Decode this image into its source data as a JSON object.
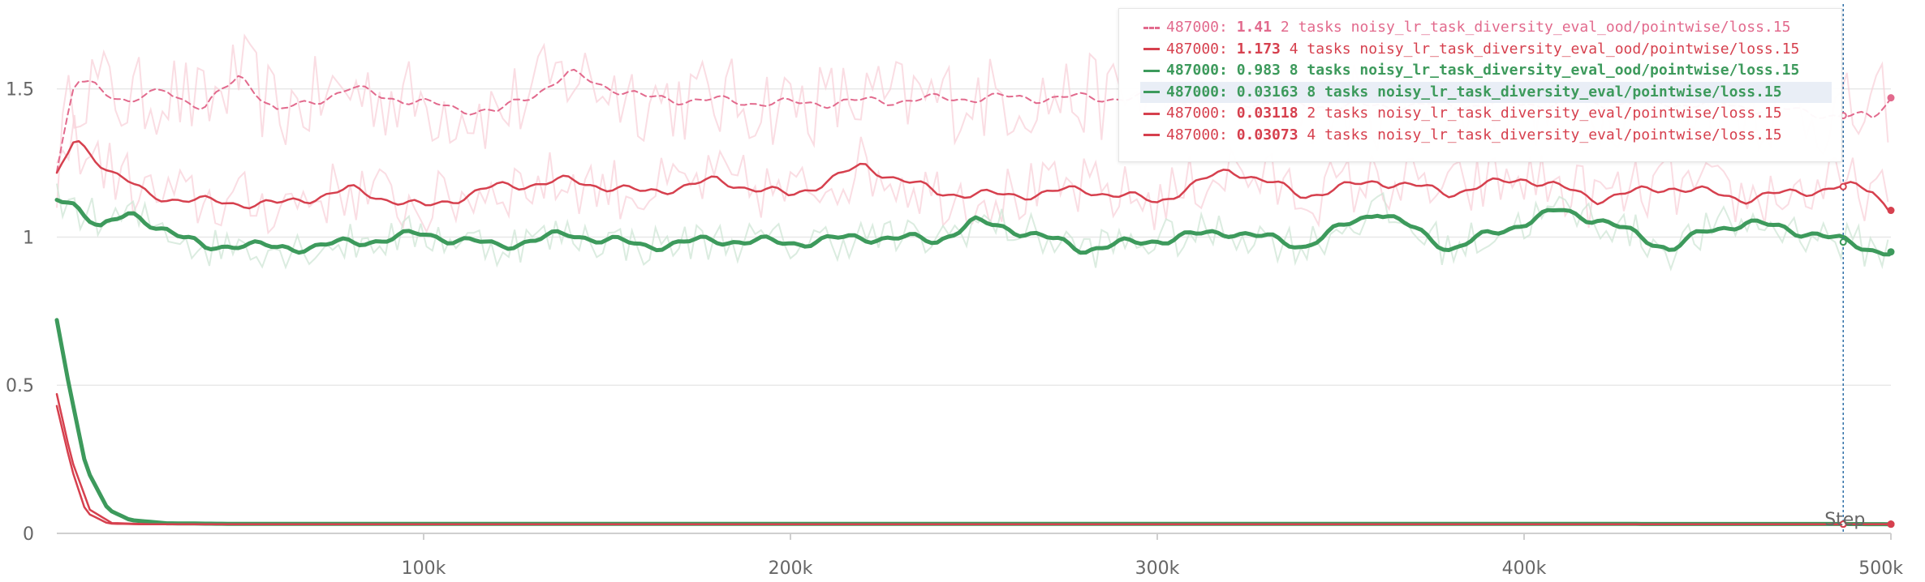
{
  "colors": {
    "pink": "#e26a8d",
    "red": "#d6404e",
    "green": "#3d9a5c",
    "green_faint": "#cfe6d5",
    "pink_faint": "#f8d2da",
    "grid": "#e8e8e8",
    "cursor": "#2f6fa8"
  },
  "chart_data": {
    "type": "line",
    "xlabel": "Step",
    "ylabel": "",
    "xlim": [
      0,
      500000
    ],
    "ylim": [
      0,
      1.8
    ],
    "x_ticks": [
      100000,
      200000,
      300000,
      400000,
      500000
    ],
    "x_tick_labels": [
      "100k",
      "200k",
      "300k",
      "400k",
      "500k"
    ],
    "y_ticks": [
      0,
      0.5,
      1,
      1.5
    ],
    "y_tick_labels": [
      "0",
      "0.5",
      "1",
      "1.5"
    ],
    "grid": true,
    "legend_position": "top-right",
    "cursor_step": 487000,
    "series": [
      {
        "name": "2 tasks noisy_lr_task_diversity_eval_ood/pointwise/loss.15",
        "color": "#e26a8d",
        "dashed": true,
        "width": 2,
        "x": [
          0,
          5000,
          10000,
          20000,
          30000,
          40000,
          50000,
          60000,
          80000,
          100000,
          120000,
          140000,
          160000,
          200000,
          250000,
          300000,
          350000,
          400000,
          450000,
          487000,
          495000,
          500000
        ],
        "y": [
          1.22,
          1.52,
          1.52,
          1.45,
          1.5,
          1.43,
          1.55,
          1.42,
          1.5,
          1.45,
          1.42,
          1.55,
          1.47,
          1.45,
          1.47,
          1.47,
          1.44,
          1.45,
          1.45,
          1.41,
          1.4,
          1.47
        ]
      },
      {
        "name": "4 tasks noisy_lr_task_diversity_eval_ood/pointwise/loss.15",
        "color": "#d6404e",
        "dashed": false,
        "width": 2.5,
        "x": [
          0,
          5000,
          15000,
          25000,
          40000,
          60000,
          80000,
          100000,
          120000,
          140000,
          160000,
          180000,
          200000,
          220000,
          240000,
          260000,
          280000,
          300000,
          320000,
          340000,
          360000,
          380000,
          400000,
          420000,
          440000,
          460000,
          487000,
          495000,
          500000
        ],
        "y": [
          1.2,
          1.33,
          1.22,
          1.14,
          1.12,
          1.11,
          1.16,
          1.1,
          1.17,
          1.19,
          1.15,
          1.19,
          1.14,
          1.24,
          1.15,
          1.14,
          1.16,
          1.12,
          1.23,
          1.14,
          1.19,
          1.15,
          1.2,
          1.13,
          1.17,
          1.13,
          1.17,
          1.16,
          1.09
        ]
      },
      {
        "name": "8 tasks noisy_lr_task_diversity_eval_ood/pointwise/loss.15",
        "color": "#3d9a5c",
        "dashed": false,
        "width": 5,
        "x": [
          0,
          5000,
          12000,
          20000,
          30000,
          40000,
          50000,
          60000,
          80000,
          100000,
          120000,
          140000,
          160000,
          180000,
          200000,
          220000,
          240000,
          250000,
          260000,
          280000,
          300000,
          320000,
          340000,
          360000,
          380000,
          400000,
          410000,
          420000,
          440000,
          450000,
          460000,
          480000,
          487000,
          495000,
          500000
        ],
        "y": [
          1.12,
          1.11,
          1.04,
          1.07,
          1.03,
          0.96,
          0.98,
          0.96,
          0.98,
          1.01,
          0.97,
          1.01,
          0.97,
          0.99,
          0.98,
          1.0,
          0.99,
          1.05,
          1.03,
          0.96,
          0.99,
          1.02,
          0.97,
          1.09,
          0.96,
          1.05,
          1.09,
          1.06,
          0.96,
          1.02,
          1.05,
          1.01,
          0.983,
          0.96,
          0.95
        ]
      },
      {
        "name": "8 tasks noisy_lr_task_diversity_eval/pointwise/loss.15",
        "color": "#3d9a5c",
        "dashed": false,
        "width": 5,
        "x": [
          0,
          3000,
          8000,
          14000,
          20000,
          30000,
          50000,
          100000,
          200000,
          300000,
          400000,
          487000,
          500000
        ],
        "y": [
          0.72,
          0.52,
          0.22,
          0.08,
          0.045,
          0.034,
          0.032,
          0.032,
          0.032,
          0.032,
          0.032,
          0.03163,
          0.031
        ]
      },
      {
        "name": "2 tasks noisy_lr_task_diversity_eval/pointwise/loss.15",
        "color": "#d6404e",
        "dashed": false,
        "width": 2.5,
        "x": [
          0,
          4000,
          9000,
          15000,
          25000,
          50000,
          500000
        ],
        "y": [
          0.47,
          0.25,
          0.08,
          0.035,
          0.031,
          0.031,
          0.031
        ]
      },
      {
        "name": "4 tasks noisy_lr_task_diversity_eval/pointwise/loss.15",
        "color": "#d6404e",
        "dashed": false,
        "width": 2.5,
        "x": [
          0,
          4000,
          8000,
          14000,
          22000,
          50000,
          500000
        ],
        "y": [
          0.43,
          0.22,
          0.07,
          0.033,
          0.031,
          0.031,
          0.031
        ]
      }
    ]
  },
  "legend": {
    "entries": [
      {
        "step": "487000:",
        "value": "1.41",
        "label": "2 tasks noisy_lr_task_diversity_eval_ood/pointwise/loss.15",
        "color": "#e26a8d"
      },
      {
        "step": "487000:",
        "value": "1.173",
        "label": "4 tasks noisy_lr_task_diversity_eval_ood/pointwise/loss.15",
        "color": "#d6404e"
      },
      {
        "step": "487000:",
        "value": "0.983",
        "label": "8 tasks noisy_lr_task_diversity_eval_ood/pointwise/loss.15",
        "color": "#3d9a5c"
      },
      {
        "step": "487000:",
        "value": "0.03163",
        "label": "8 tasks noisy_lr_task_diversity_eval/pointwise/loss.15",
        "color": "#3d9a5c"
      },
      {
        "step": "487000:",
        "value": "0.03118",
        "label": "2 tasks noisy_lr_task_diversity_eval/pointwise/loss.15",
        "color": "#d6404e"
      },
      {
        "step": "487000:",
        "value": "0.03073",
        "label": "4 tasks noisy_lr_task_diversity_eval/pointwise/loss.15",
        "color": "#d6404e"
      }
    ]
  }
}
